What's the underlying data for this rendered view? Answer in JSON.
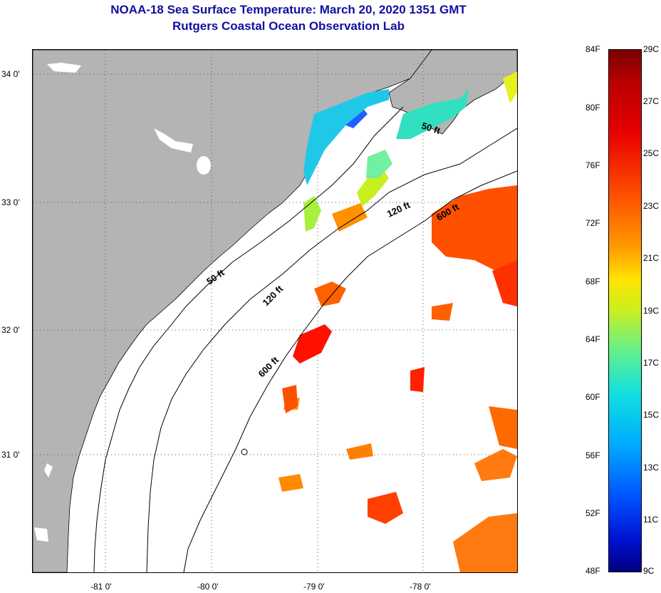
{
  "header": {
    "title": "NOAA-18 Sea Surface Temperature:  March 20, 2020 1351 GMT",
    "subtitle": "Rutgers Coastal Ocean Observation Lab"
  },
  "map": {
    "lat_labels": [
      "34 0'",
      "33 0'",
      "32 0'",
      "31 0'"
    ],
    "lon_labels": [
      "-81 0'",
      "-80 0'",
      "-79 0'",
      "-78 0'"
    ],
    "contours": [
      {
        "label": "50 ft"
      },
      {
        "label": "120 ft"
      },
      {
        "label": "600 ft"
      },
      {
        "label": "50 ft"
      },
      {
        "label": "120 ft"
      },
      {
        "label": "600 ft"
      }
    ],
    "colors": {
      "land": "#b4b4b4",
      "coast": "#000000",
      "grid": "#555555"
    }
  },
  "colorbar": {
    "fahrenheit": [
      "84F",
      "80F",
      "76F",
      "72F",
      "68F",
      "64F",
      "60F",
      "56F",
      "52F",
      "48F"
    ],
    "celsius": [
      "29C",
      "27C",
      "25C",
      "23C",
      "21C",
      "19C",
      "17C",
      "15C",
      "13C",
      "11C",
      "9C"
    ],
    "range_f": [
      48,
      84
    ],
    "range_c": [
      9,
      29
    ]
  }
}
